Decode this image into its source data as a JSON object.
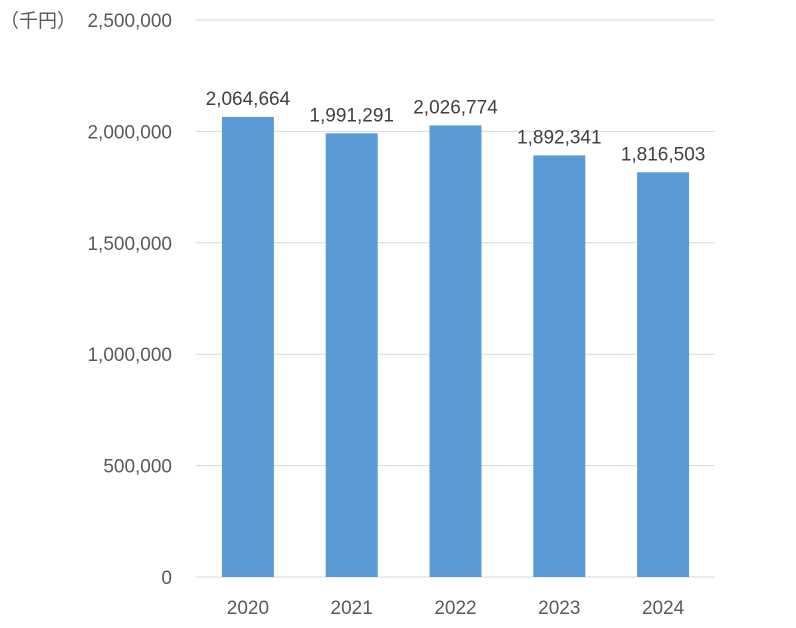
{
  "chart_data": {
    "type": "bar",
    "unit_label": "（千円）",
    "categories": [
      "2020",
      "2021",
      "2022",
      "2023",
      "2024"
    ],
    "values": [
      2064664,
      1991291,
      2026774,
      1892341,
      1816503
    ],
    "data_labels": [
      "2,064,664",
      "1,991,291",
      "2,026,774",
      "1,892,341",
      "1,816,503"
    ],
    "yticks": [
      0,
      500000,
      1000000,
      1500000,
      2000000,
      2500000
    ],
    "ytick_labels": [
      "0",
      "500,000",
      "1,000,000",
      "1,500,000",
      "2,000,000",
      "2,500,000"
    ],
    "ylim": [
      0,
      2500000
    ],
    "grid": true,
    "legend": "none",
    "bar_color": "#5b9bd5"
  }
}
